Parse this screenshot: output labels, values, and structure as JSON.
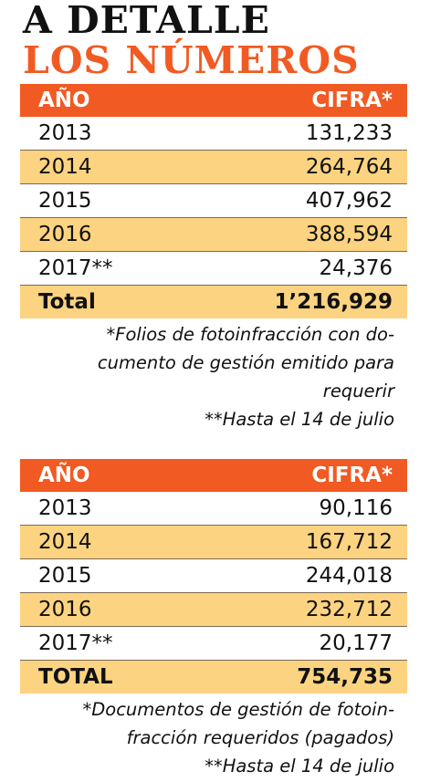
{
  "header": {
    "line1": "A DETALLE",
    "line2": "LOS NÚMEROS"
  },
  "tables": [
    {
      "columns": [
        "AÑO",
        "CIFRA*"
      ],
      "rows": [
        [
          "2013",
          "131,233"
        ],
        [
          "2014",
          "264,764"
        ],
        [
          "2015",
          "407,962"
        ],
        [
          "2016",
          "388,594"
        ],
        [
          "2017**",
          "24,376"
        ]
      ],
      "total": [
        "Total",
        "1’216,929"
      ],
      "notes": [
        "*Folios de fotoinfracción con do-",
        "cumento de gestión emitido para",
        "requerir",
        "**Hasta el 14 de julio"
      ]
    },
    {
      "columns": [
        "AÑO",
        "CIFRA*"
      ],
      "rows": [
        [
          "2013",
          "90,116"
        ],
        [
          "2014",
          "167,712"
        ],
        [
          "2015",
          "244,018"
        ],
        [
          "2016",
          "232,712"
        ],
        [
          "2017**",
          "20,177"
        ]
      ],
      "total": [
        "TOTAL",
        "754,735"
      ],
      "notes": [
        "*Documentos de gestión de fotoin-",
        "fracción requeridos (pagados)",
        "**Hasta el 14 de julio"
      ]
    }
  ]
}
